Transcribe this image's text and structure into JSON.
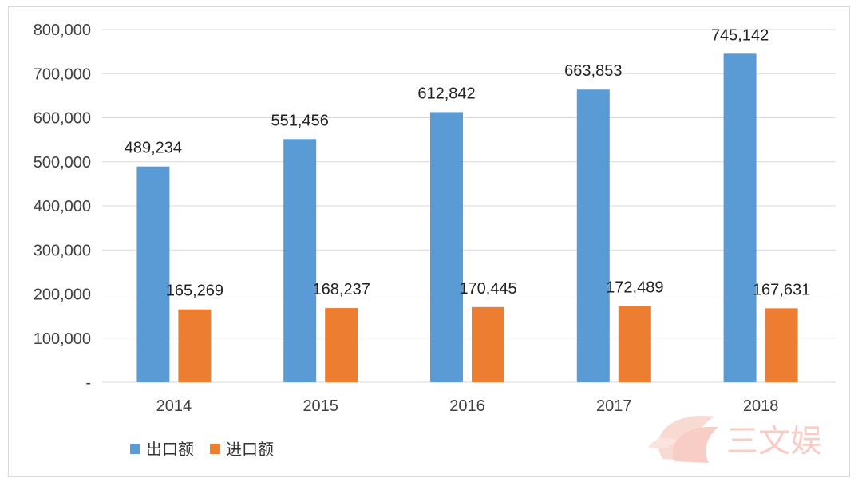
{
  "chart_data": {
    "type": "bar",
    "categories": [
      "2014",
      "2015",
      "2016",
      "2017",
      "2018"
    ],
    "series": [
      {
        "name": "出口额",
        "values": [
          489234,
          551456,
          612842,
          663853,
          745142
        ],
        "color": "#5b9bd5"
      },
      {
        "name": "进口额",
        "values": [
          165269,
          168237,
          170445,
          172489,
          167631
        ],
        "color": "#ed7d31"
      }
    ],
    "data_labels": {
      "出口额": [
        "489,234",
        "551,456",
        "612,842",
        "663,853",
        "745,142"
      ],
      "进口额": [
        "165,269",
        "168,237",
        "170,445",
        "172,489",
        "167,631"
      ]
    },
    "ylim": [
      0,
      800000
    ],
    "yticks": [
      0,
      100000,
      200000,
      300000,
      400000,
      500000,
      600000,
      700000,
      800000
    ],
    "ytick_labels": [
      "-",
      "100,000",
      "200,000",
      "300,000",
      "400,000",
      "500,000",
      "600,000",
      "700,000",
      "800,000"
    ],
    "grid": true,
    "legend_position": "bottom-left",
    "gridline_color": "#d9d9d9"
  },
  "watermark": {
    "text": "三文娱",
    "icon": "fish-logo-icon",
    "color": "#f6c5bb"
  }
}
